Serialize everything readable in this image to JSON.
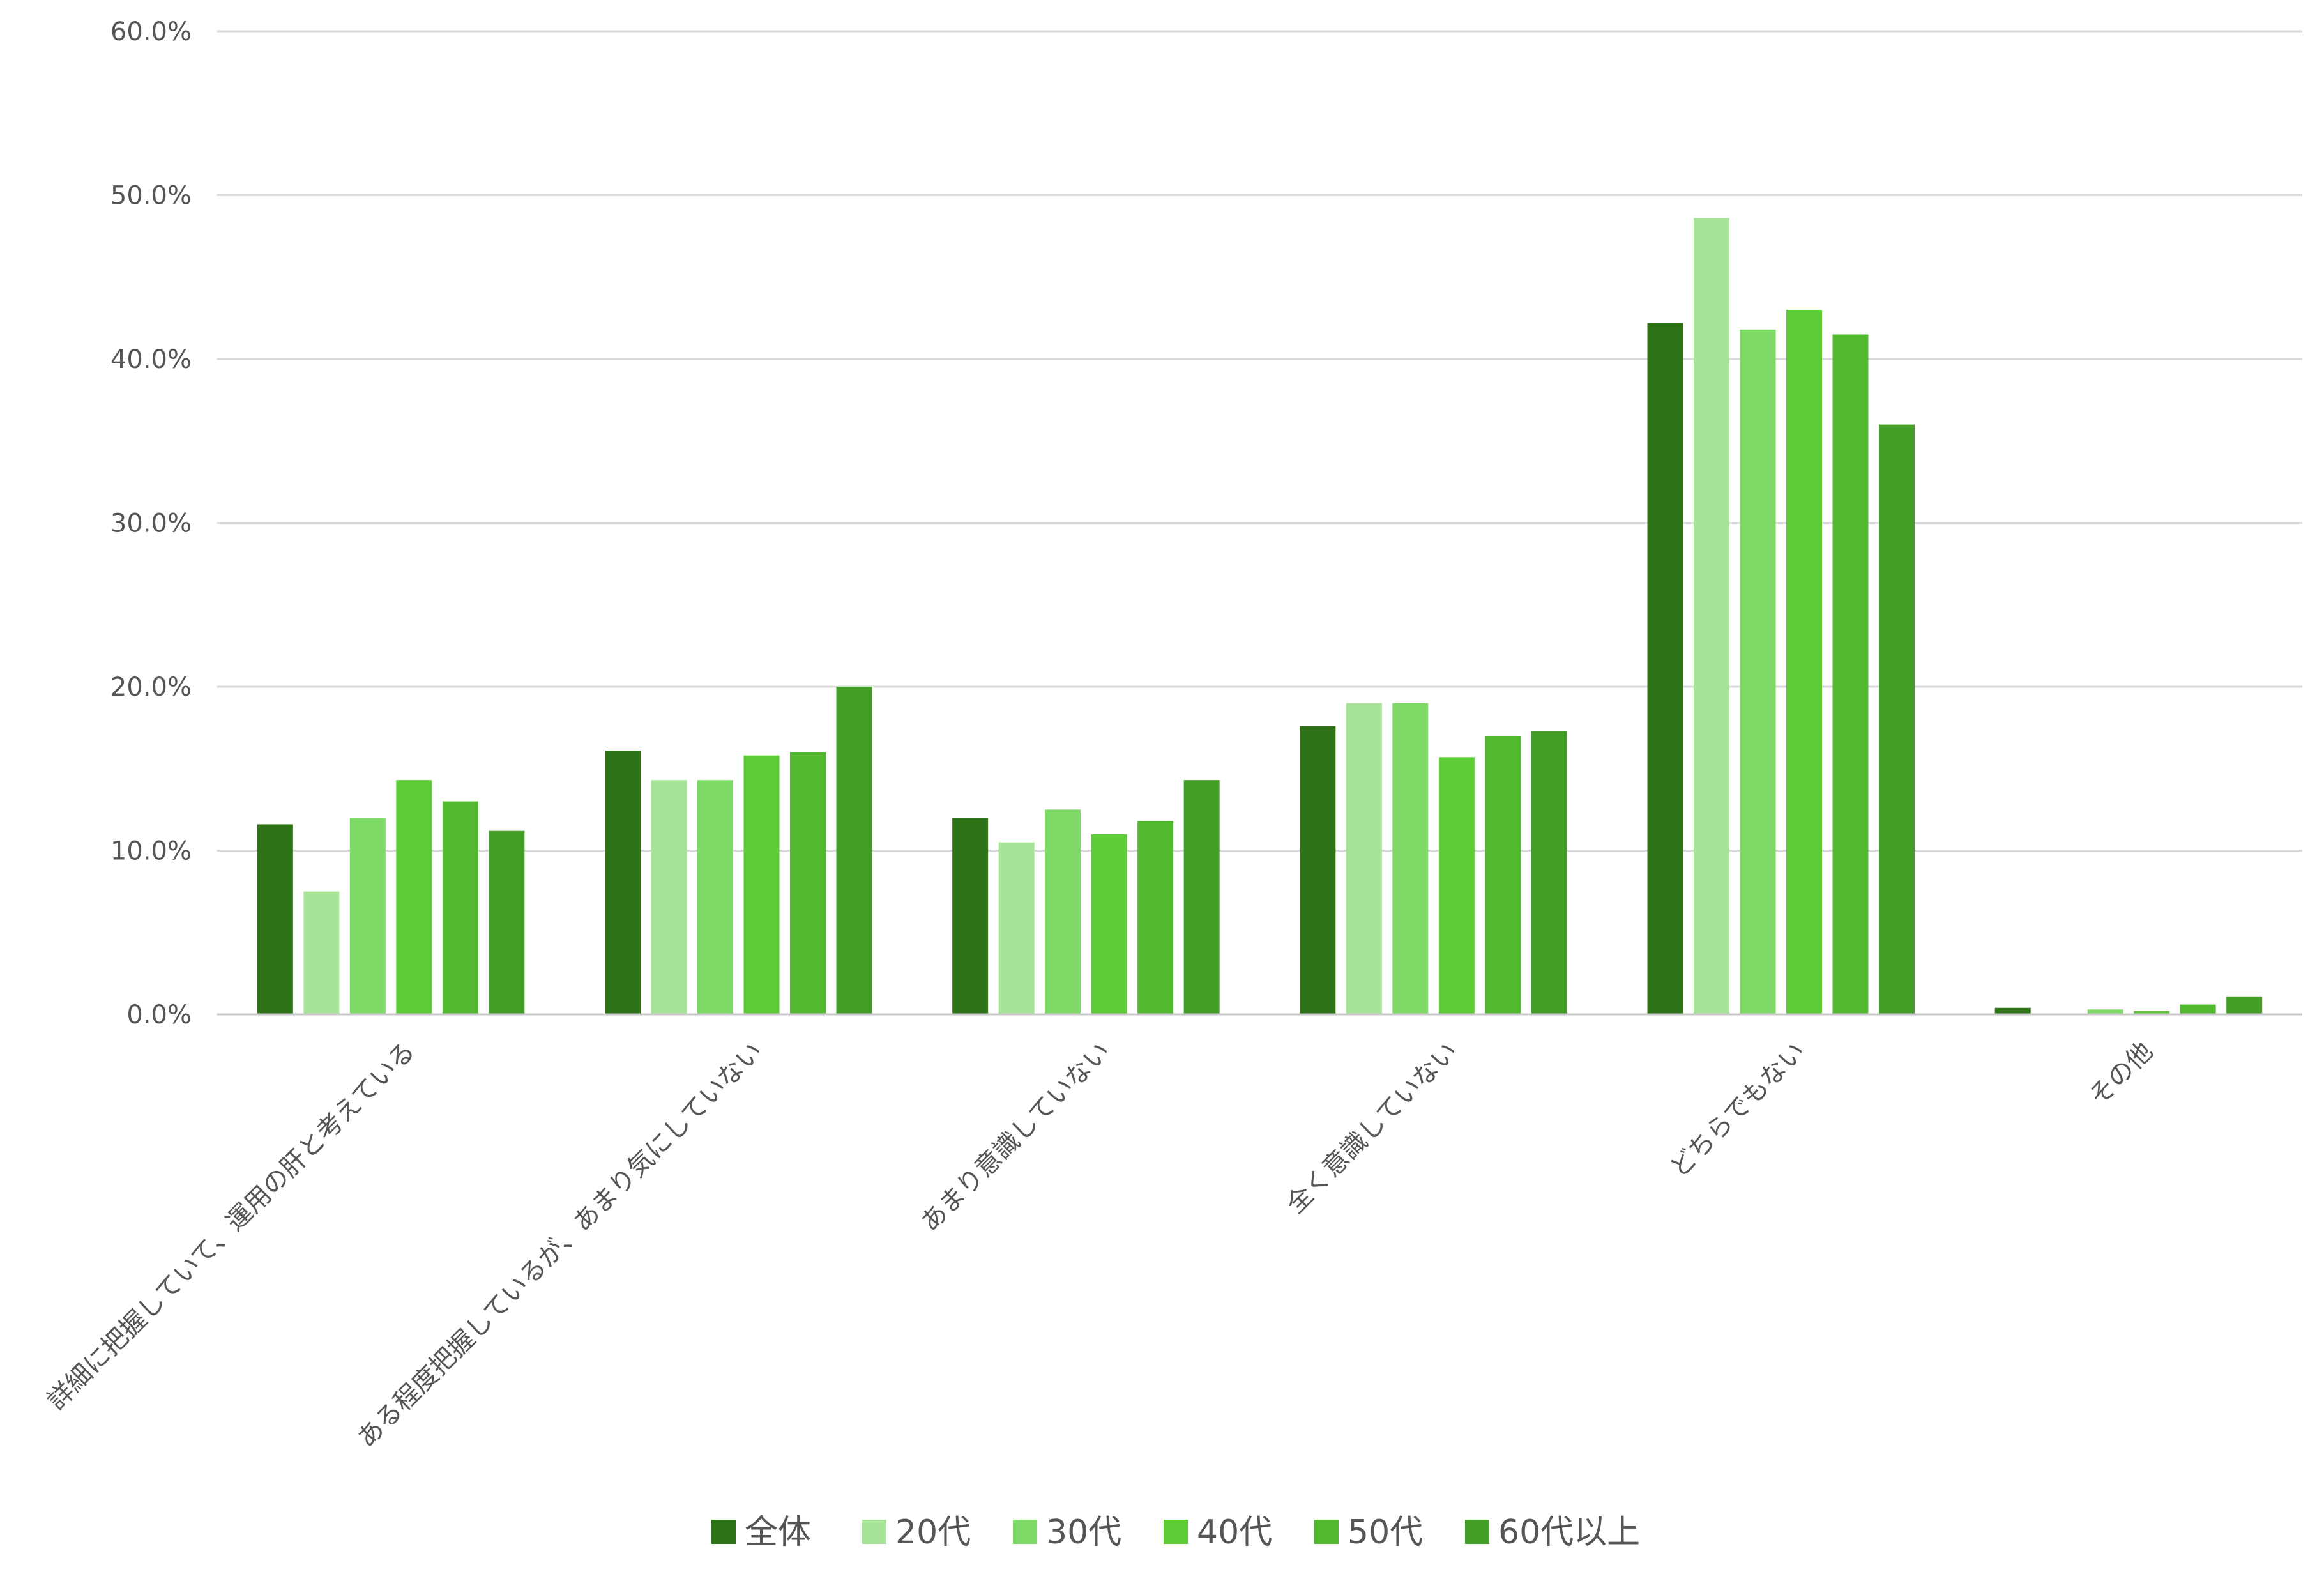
{
  "chart_data": {
    "type": "bar",
    "title": "",
    "xlabel": "",
    "ylabel": "",
    "ylim": [
      0,
      60
    ],
    "yticks": [
      "0.0%",
      "10.0%",
      "20.0%",
      "30.0%",
      "40.0%",
      "50.0%",
      "60.0%"
    ],
    "grid": true,
    "legend_position": "bottom",
    "categories": [
      "詳細に把握していて、運用の肝と考えている",
      "ある程度把握しているが、あまり気にしていない",
      "あまり意識していない",
      "全く意識していない",
      "どちらでもない",
      "その他"
    ],
    "series": [
      {
        "name": "全体",
        "color": "#2f7318",
        "values": [
          11.6,
          16.1,
          12.0,
          17.6,
          42.2,
          0.4
        ]
      },
      {
        "name": "20代",
        "color": "#a8e39a",
        "values": [
          7.5,
          14.3,
          10.5,
          19.0,
          48.6,
          0.0
        ]
      },
      {
        "name": "30代",
        "color": "#7fd966",
        "values": [
          12.0,
          14.3,
          12.5,
          19.0,
          41.8,
          0.3
        ]
      },
      {
        "name": "40代",
        "color": "#5ccb35",
        "values": [
          14.3,
          15.8,
          11.0,
          15.7,
          43.0,
          0.2
        ]
      },
      {
        "name": "50代",
        "color": "#52b830",
        "values": [
          13.0,
          16.0,
          11.8,
          17.0,
          41.5,
          0.6
        ]
      },
      {
        "name": "60代以上",
        "color": "#449e27",
        "values": [
          11.2,
          20.0,
          14.3,
          17.3,
          36.0,
          1.1
        ]
      }
    ]
  }
}
